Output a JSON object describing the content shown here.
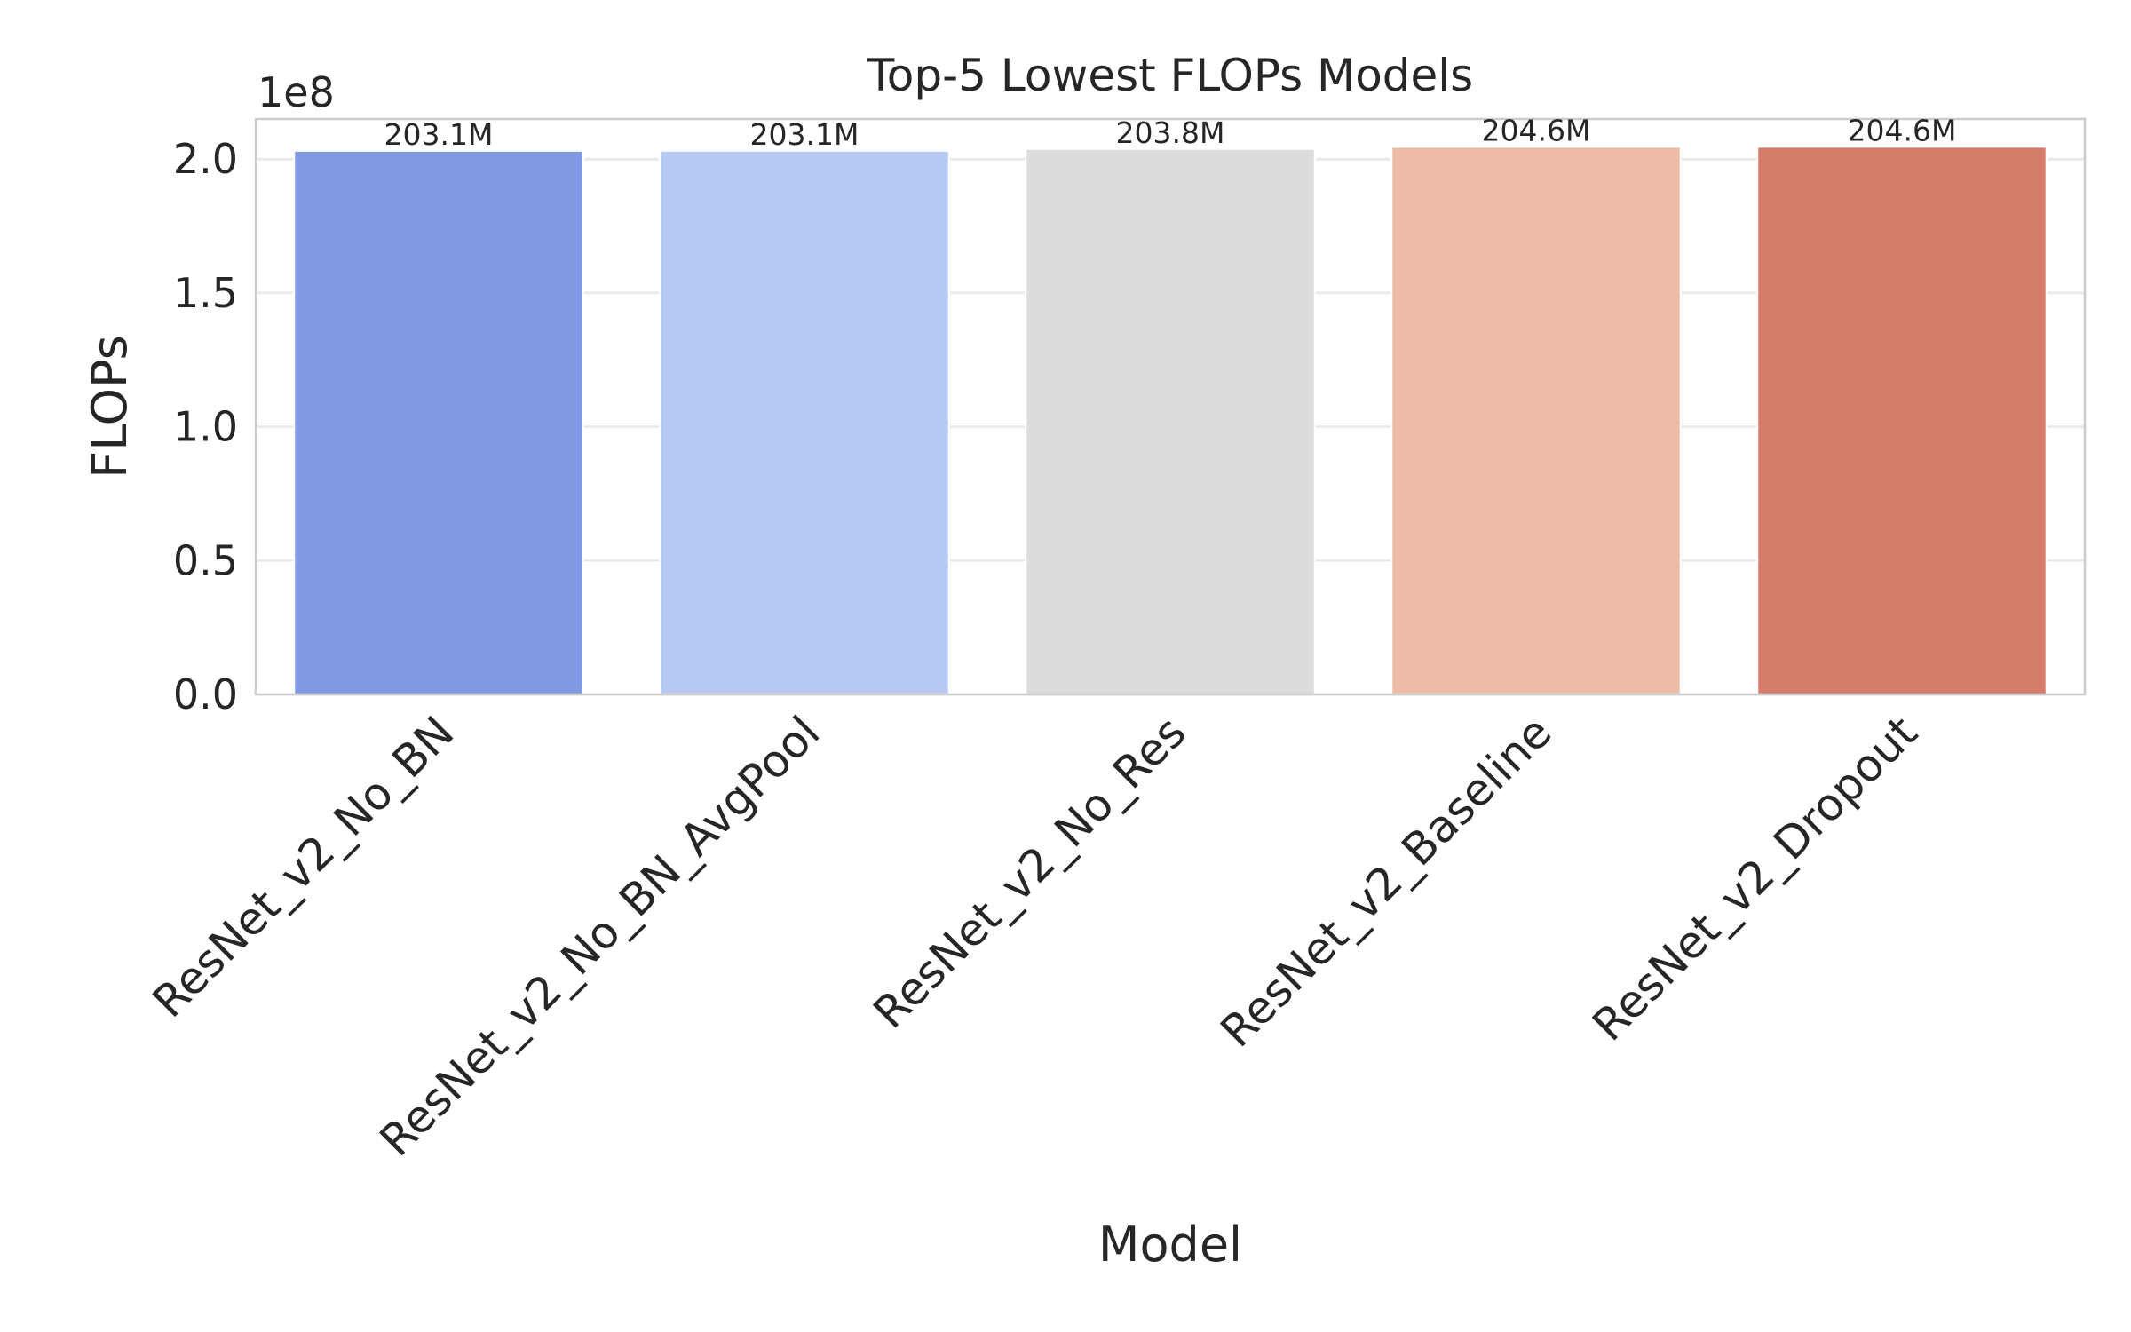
{
  "chart_data": {
    "type": "bar",
    "title": "Top-5 Lowest FLOPs Models",
    "xlabel": "Model",
    "ylabel": "FLOPs",
    "offset_label": "1e8",
    "categories": [
      "ResNet_v2_No_BN",
      "ResNet_v2_No_BN_AvgPool",
      "ResNet_v2_No_Res",
      "ResNet_v2_Baseline",
      "ResNet_v2_Dropout"
    ],
    "values": [
      203.1,
      203.1,
      203.8,
      204.6,
      204.6
    ],
    "value_unit": "M",
    "data_labels": [
      "203.1M",
      "203.1M",
      "203.8M",
      "204.6M",
      "204.6M"
    ],
    "yticks": [
      0.0,
      0.5,
      1.0,
      1.5,
      2.0
    ],
    "ytick_labels": [
      "0.0",
      "0.5",
      "1.0",
      "1.5",
      "2.0"
    ],
    "ylim": [
      0,
      2.15
    ],
    "grid": true,
    "colors": [
      "#8199e2",
      "#b6c9f2",
      "#dcdcdc",
      "#ecbca6",
      "#d57d6a"
    ]
  }
}
